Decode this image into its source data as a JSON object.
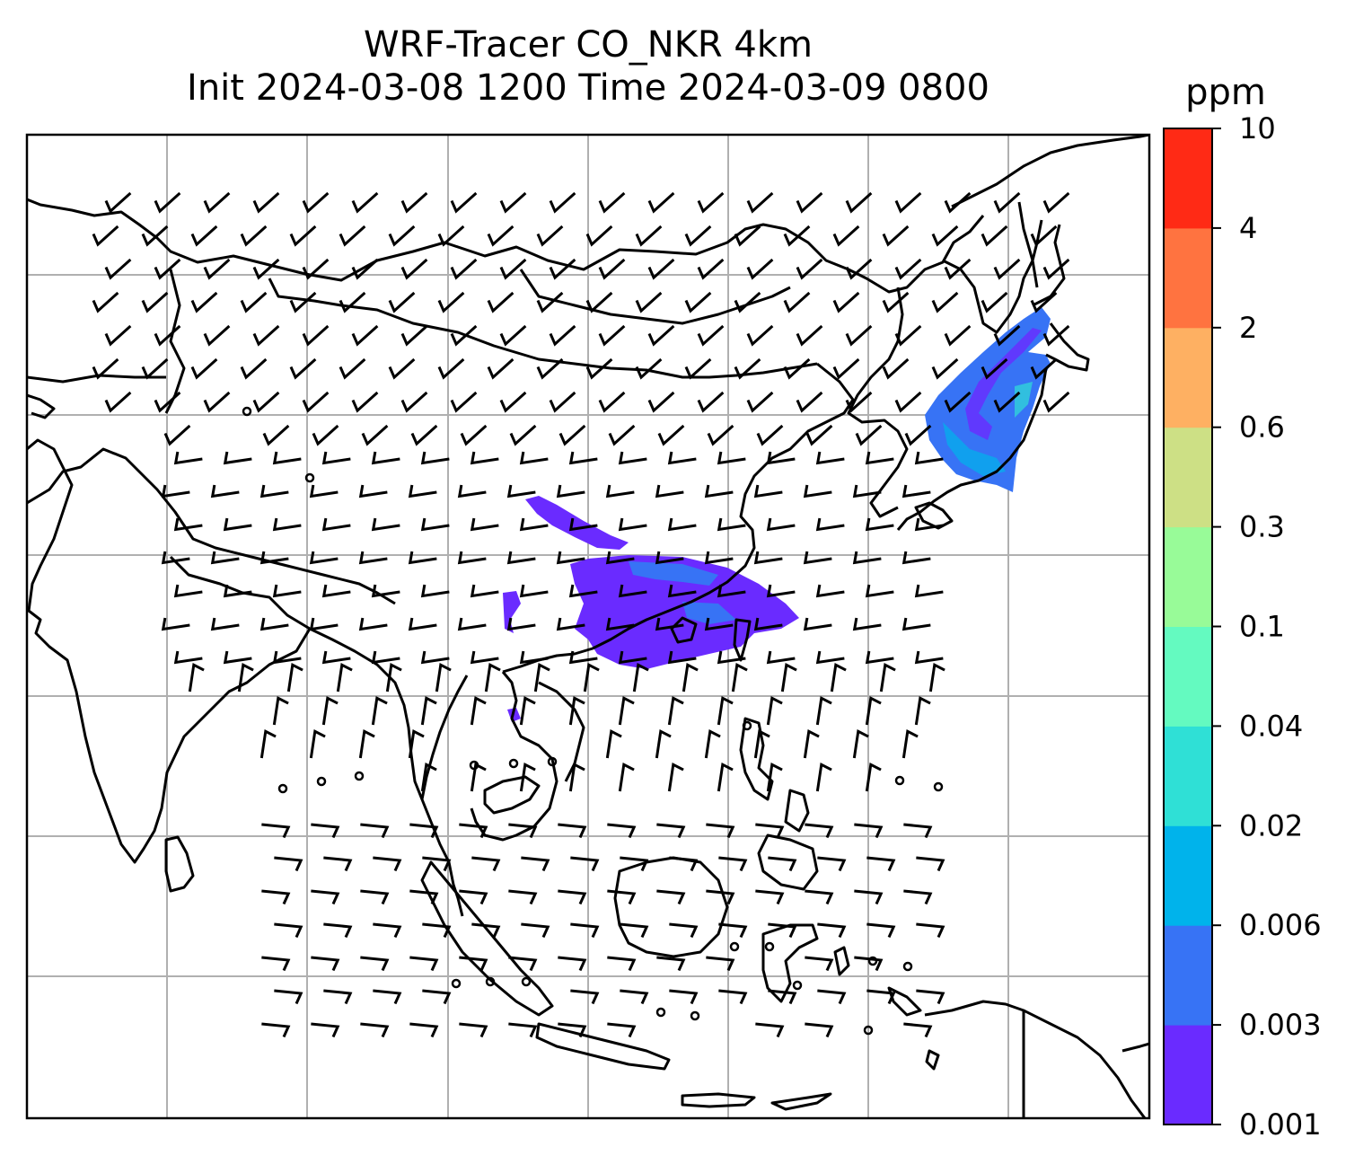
{
  "title": {
    "line1": "WRF-Tracer CO_NKR 4km",
    "line2": "Init 2024-03-08 1200 Time 2024-03-09 0800"
  },
  "colorbar": {
    "unit": "ppm",
    "levels": [
      "0.001",
      "0.003",
      "0.006",
      "0.02",
      "0.04",
      "0.1",
      "0.3",
      "0.6",
      "2",
      "4",
      "10"
    ],
    "colors": [
      "#6a2bff",
      "#3773f5",
      "#00b3eb",
      "#2fe0d6",
      "#64fac0",
      "#98fb98",
      "#cde085",
      "#feb062",
      "#ff7340",
      "#ff2a15"
    ]
  },
  "map": {
    "coastline_color": "#000000",
    "gridline_color": "#b0b0b0",
    "barb_color": "#000000"
  }
}
